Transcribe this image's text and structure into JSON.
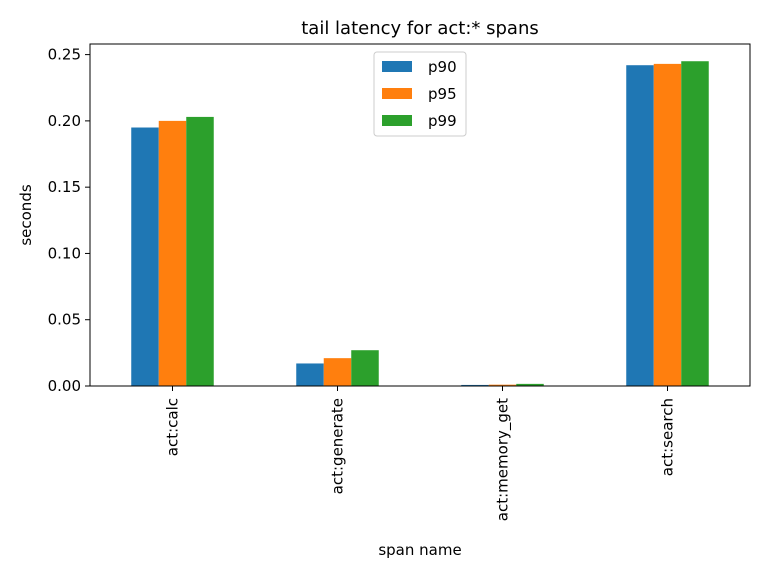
{
  "chart_data": {
    "type": "bar",
    "title": "tail latency for act:* spans",
    "xlabel": "span name",
    "ylabel": "seconds",
    "categories": [
      "act:calc",
      "act:generate",
      "act:memory_get",
      "act:search"
    ],
    "series": [
      {
        "name": "p90",
        "color": "#1f77b4",
        "values": [
          0.195,
          0.017,
          0.0008,
          0.242
        ]
      },
      {
        "name": "p95",
        "color": "#ff7f0e",
        "values": [
          0.2,
          0.021,
          0.001,
          0.243
        ]
      },
      {
        "name": "p99",
        "color": "#2ca02c",
        "values": [
          0.203,
          0.027,
          0.0016,
          0.245
        ]
      }
    ],
    "ylim": [
      0,
      0.258
    ],
    "yticks": [
      "0.00",
      "0.05",
      "0.10",
      "0.15",
      "0.20",
      "0.25"
    ],
    "grid": false,
    "legend_position": "top-center"
  }
}
